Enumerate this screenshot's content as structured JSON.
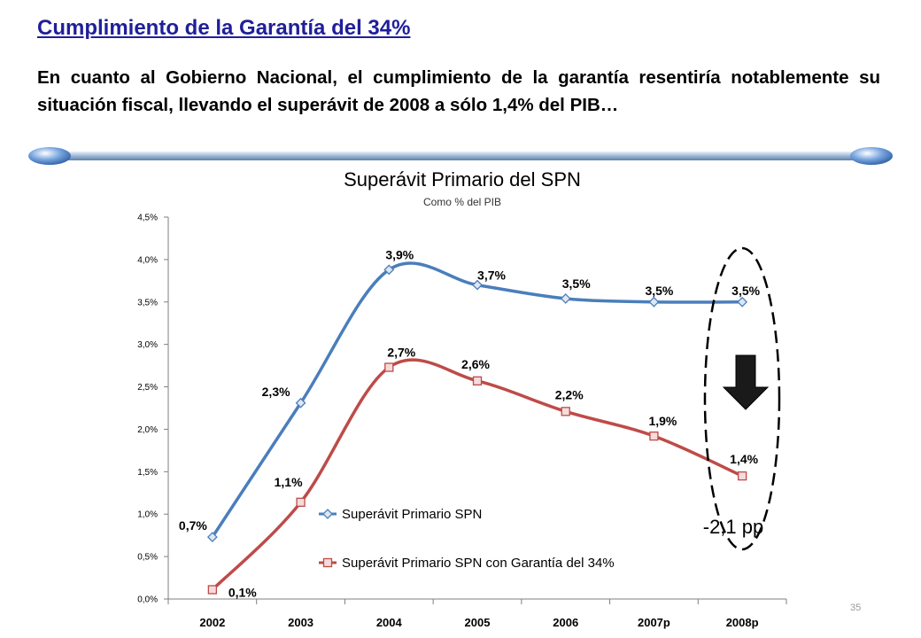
{
  "slide": {
    "heading": "Cumplimiento de la Garantía del 34%",
    "intro": "En cuanto al Gobierno Nacional, el cumplimiento de la garantía resentiría notablemente su situación fiscal, llevando el superávit de 2008 a sólo 1,4% del PIB…",
    "page_number": "35"
  },
  "chart_data": {
    "type": "line",
    "title": "Superávit Primario del SPN",
    "subtitle": "Como % del PIB",
    "categories": [
      "2002",
      "2003",
      "2004",
      "2005",
      "2006",
      "2007p",
      "2008p"
    ],
    "ylim": [
      0,
      4.5
    ],
    "yticks": [
      0,
      0.5,
      1,
      1.5,
      2,
      2.5,
      3,
      3.5,
      4,
      4.5
    ],
    "ytick_labels": [
      "0,0%",
      "0,5%",
      "1,0%",
      "1,5%",
      "2,0%",
      "2,5%",
      "3,0%",
      "3,5%",
      "4,0%",
      "4,5%"
    ],
    "grid": false,
    "legend_position": "bottom-center",
    "series": [
      {
        "name": "Superávit Primario SPN",
        "color": "#4a7ebb",
        "marker": "diamond",
        "values": [
          0.73,
          2.31,
          3.88,
          3.7,
          3.54,
          3.5,
          3.5
        ],
        "labels": [
          "0,7%",
          "2,3%",
          "3,9%",
          "3,7%",
          "3,5%",
          "3,5%",
          "3,5%"
        ]
      },
      {
        "name": "Superávit Primario SPN con Garantía del 34%",
        "color": "#be4b48",
        "marker": "square",
        "values": [
          0.11,
          1.14,
          2.73,
          2.57,
          2.21,
          1.92,
          1.45
        ],
        "labels": [
          "0,1%",
          "1,1%",
          "2,7%",
          "2,6%",
          "2,2%",
          "1,9%",
          "1,4%"
        ]
      }
    ],
    "annotation": {
      "text": "-2,1 pp",
      "icon": "down-arrow-icon"
    }
  }
}
